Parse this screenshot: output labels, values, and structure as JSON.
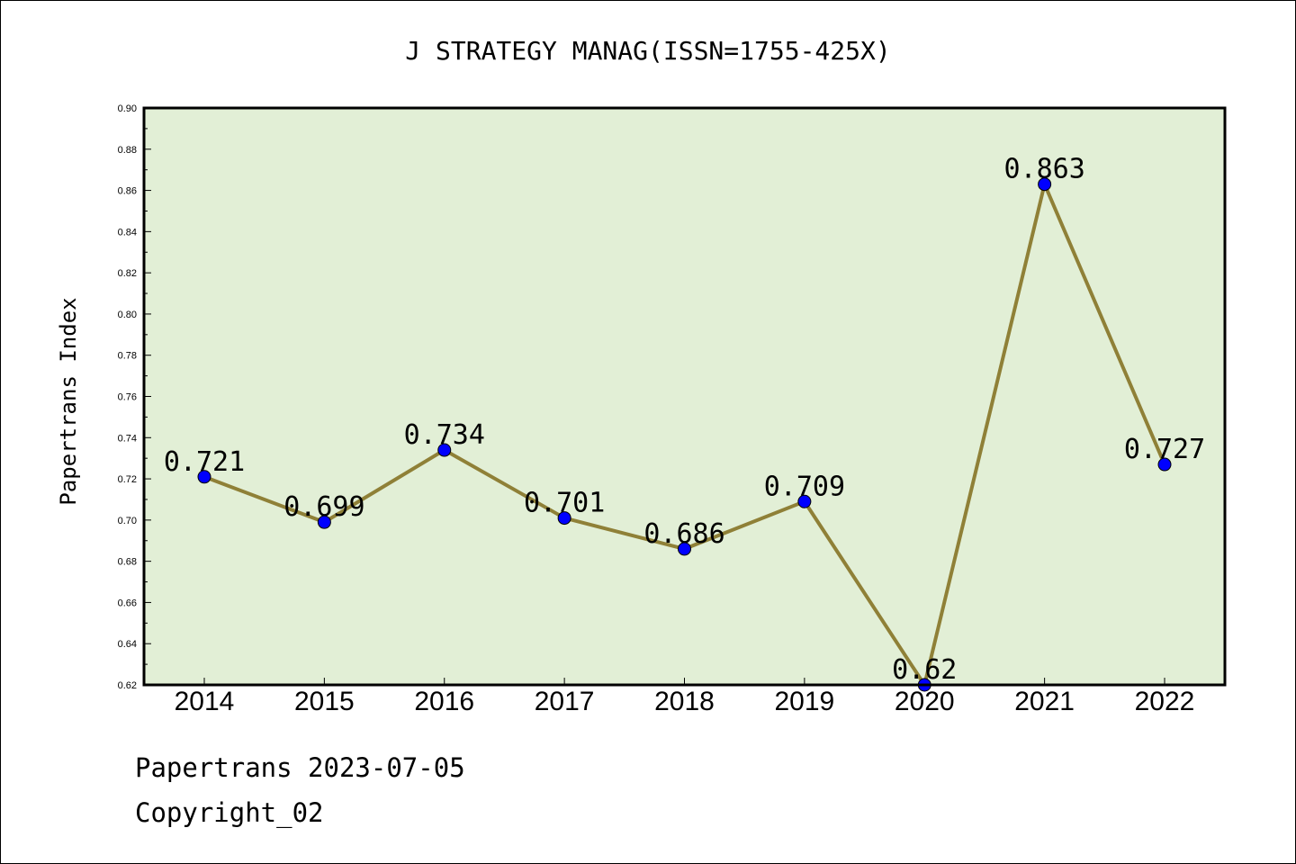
{
  "chart_data": {
    "type": "line",
    "title": "J STRATEGY MANAG(ISSN=1755-425X)",
    "xlabel": "",
    "ylabel": "Papertrans Index",
    "categories": [
      "2014",
      "2015",
      "2016",
      "2017",
      "2018",
      "2019",
      "2020",
      "2021",
      "2022"
    ],
    "values": [
      0.721,
      0.699,
      0.734,
      0.701,
      0.686,
      0.709,
      0.62,
      0.863,
      0.727
    ],
    "value_labels": [
      "0.721",
      "0.699",
      "0.734",
      "0.701",
      "0.686",
      "0.709",
      "0.62",
      "0.863",
      "0.727"
    ],
    "ylim": [
      0.62,
      0.9
    ],
    "yticks": [
      "0.62",
      "0.64",
      "0.66",
      "0.68",
      "0.70",
      "0.72",
      "0.74",
      "0.76",
      "0.78",
      "0.80",
      "0.82",
      "0.84",
      "0.86",
      "0.88",
      "0.90"
    ],
    "grid": false,
    "colors": {
      "plot_background": "#e2efd6",
      "line": "#8f8037",
      "marker": "#0000ff"
    }
  },
  "footer": {
    "line1": "Papertrans 2023-07-05",
    "line2": "Copyright_02"
  }
}
